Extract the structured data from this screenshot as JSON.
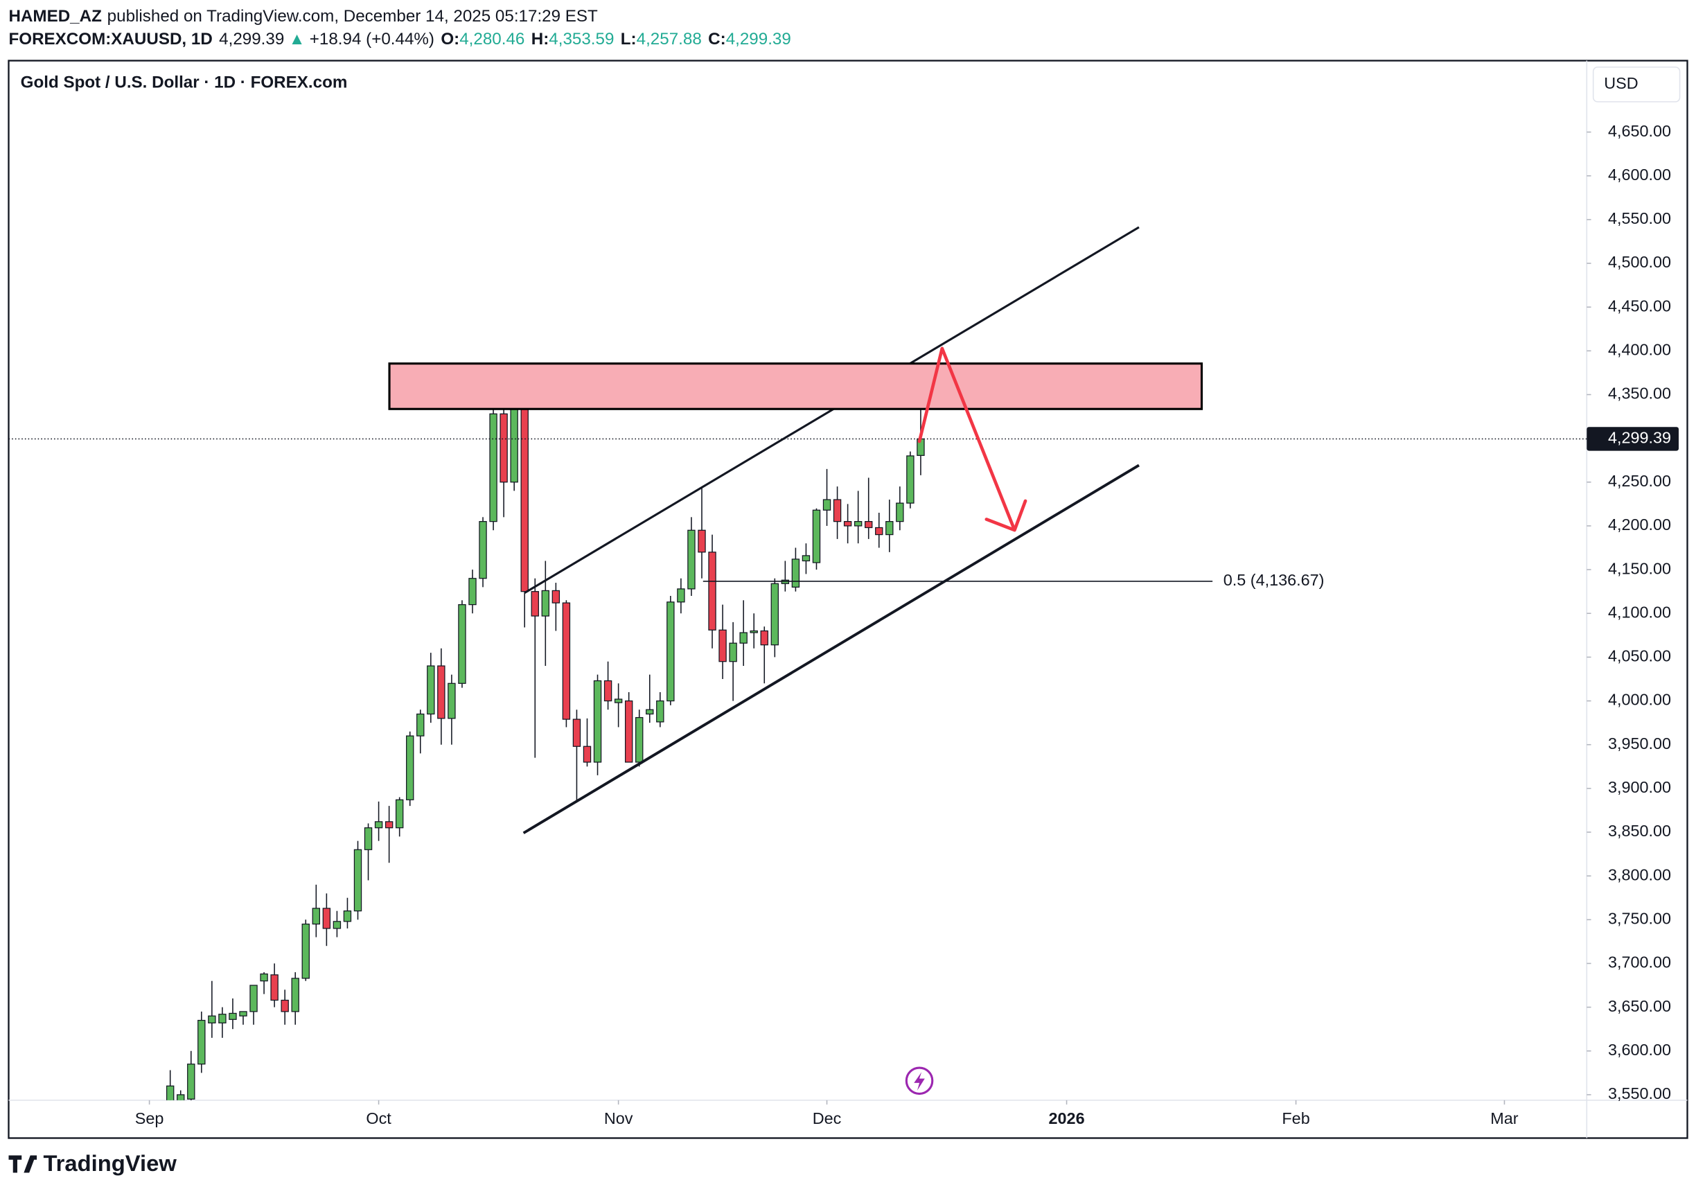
{
  "header": {
    "author": "HAMED_AZ",
    "published": "published on TradingView.com, December 14, 2025 05:17:29 EST",
    "symbol": "FOREXCOM:XAUUSD, 1D",
    "price": "4,299.39",
    "arrow": "▲",
    "change": "+18.94 (+0.44%)",
    "open_label": "O:",
    "open": "4,280.46",
    "high_label": "H:",
    "high": "4,353.59",
    "low_label": "L:",
    "low": "4,257.88",
    "close_label": "C:",
    "close": "4,299.39"
  },
  "chart_data": {
    "type": "candlestick",
    "title": "Gold Spot / U.S. Dollar · 1D · FOREX.com",
    "currency": "USD",
    "up_color": "#5cb85c",
    "down_color": "#e8404f",
    "x": [
      2,
      3,
      4,
      5,
      6,
      7,
      8,
      9,
      10,
      11,
      12,
      13,
      14,
      15,
      16,
      17,
      18,
      19,
      20,
      21,
      22,
      23,
      24,
      25,
      26,
      27,
      28,
      29,
      30,
      31,
      32,
      33,
      34,
      35,
      36,
      37,
      38,
      39,
      40,
      41,
      42,
      43,
      44,
      45,
      46,
      47,
      48,
      49,
      50,
      51,
      52,
      53,
      54,
      55,
      56,
      57,
      58,
      59,
      60,
      61,
      62,
      63,
      64,
      65,
      66,
      67,
      68,
      69,
      70,
      71,
      72,
      73,
      74
    ],
    "open": [
      3530,
      3540,
      3545,
      3585,
      3632,
      3632,
      3636,
      3640,
      3645,
      3680,
      3687,
      3658,
      3645,
      3683,
      3745,
      3763,
      3740,
      3748,
      3760,
      3830,
      3855,
      3862,
      3855,
      3887,
      3960,
      3985,
      4040,
      3980,
      4020,
      4110,
      4140,
      4205,
      4328,
      4250,
      4355,
      4125,
      4097,
      4126,
      4112,
      3979,
      3948,
      3930,
      4023,
      3998,
      4000,
      3930,
      3985,
      3976,
      4000,
      4113,
      4128,
      4195,
      4170,
      4081,
      4045,
      4066,
      4078,
      4080,
      4064,
      4134,
      4130,
      4160,
      4158,
      4218,
      4230,
      4205,
      4200,
      4205,
      4198,
      4190,
      4205,
      4226,
      4280.46
    ],
    "high": [
      3578,
      3555,
      3600,
      3645,
      3680,
      3650,
      3660,
      3645,
      3675,
      3690,
      3700,
      3670,
      3690,
      3750,
      3790,
      3780,
      3760,
      3775,
      3840,
      3860,
      3885,
      3880,
      3890,
      3965,
      3990,
      4055,
      4060,
      4030,
      4115,
      4150,
      4210,
      4340,
      4380,
      4385,
      4375,
      4140,
      4160,
      4135,
      4115,
      3990,
      3980,
      4030,
      4045,
      4020,
      4010,
      3990,
      4030,
      4010,
      4120,
      4140,
      4210,
      4245,
      4190,
      4110,
      4090,
      4115,
      4100,
      4085,
      4140,
      4160,
      4175,
      4180,
      4220,
      4265,
      4245,
      4225,
      4240,
      4255,
      4215,
      4230,
      4245,
      4285,
      4353.59
    ],
    "low": [
      3520,
      3530,
      3540,
      3575,
      3615,
      3615,
      3625,
      3630,
      3630,
      3665,
      3650,
      3630,
      3630,
      3680,
      3730,
      3720,
      3730,
      3740,
      3750,
      3795,
      3840,
      3815,
      3845,
      3880,
      3940,
      3975,
      3950,
      3950,
      4015,
      4100,
      4130,
      4195,
      4210,
      4240,
      4084,
      3935,
      4040,
      4080,
      3970,
      3885,
      3925,
      3915,
      3990,
      3970,
      3930,
      3925,
      3975,
      3970,
      3995,
      4100,
      4120,
      4140,
      4060,
      4025,
      4000,
      4040,
      4060,
      4020,
      4050,
      4125,
      4125,
      4145,
      4150,
      4200,
      4185,
      4180,
      4180,
      4185,
      4175,
      4170,
      4195,
      4220,
      4257.88
    ],
    "close": [
      3560,
      3550,
      3585,
      3635,
      3640,
      3642,
      3643,
      3645,
      3675,
      3688,
      3658,
      3645,
      3683,
      3745,
      3763,
      3740,
      3748,
      3760,
      3830,
      3855,
      3862,
      3855,
      3887,
      3960,
      3985,
      4040,
      3980,
      4020,
      4110,
      4140,
      4205,
      4328,
      4250,
      4355,
      4125,
      4097,
      4126,
      4112,
      3979,
      3948,
      3930,
      4023,
      4000,
      4002,
      3930,
      3981,
      3990,
      4000,
      4113,
      4128,
      4195,
      4170,
      4081,
      4045,
      4066,
      4078,
      4080,
      4064,
      4134,
      4138,
      4162,
      4166,
      4218,
      4230,
      4205,
      4200,
      4205,
      4198,
      4190,
      4205,
      4226,
      4280,
      4299.39
    ],
    "xlim": [
      -13.5,
      137.9
    ],
    "xticks": [
      {
        "value": 0,
        "label": "Sep"
      },
      {
        "value": 22,
        "label": "Oct"
      },
      {
        "value": 45,
        "label": "Nov"
      },
      {
        "value": 65,
        "label": "Dec"
      },
      {
        "value": 88,
        "label": "2026"
      },
      {
        "value": 110,
        "label": "Feb"
      },
      {
        "value": 130,
        "label": "Mar"
      }
    ],
    "ylim": [
      3543.7,
      4731.6
    ],
    "yticks": [
      {
        "value": 3550,
        "label": "3,550.00"
      },
      {
        "value": 3600,
        "label": "3,600.00"
      },
      {
        "value": 3650,
        "label": "3,650.00"
      },
      {
        "value": 3700,
        "label": "3,700.00"
      },
      {
        "value": 3750,
        "label": "3,750.00"
      },
      {
        "value": 3800,
        "label": "3,800.00"
      },
      {
        "value": 3850,
        "label": "3,850.00"
      },
      {
        "value": 3900,
        "label": "3,900.00"
      },
      {
        "value": 3950,
        "label": "3,950.00"
      },
      {
        "value": 4000,
        "label": "4,000.00"
      },
      {
        "value": 4050,
        "label": "4,050.00"
      },
      {
        "value": 4100,
        "label": "4,100.00"
      },
      {
        "value": 4150,
        "label": "4,150.00"
      },
      {
        "value": 4200,
        "label": "4,200.00"
      },
      {
        "value": 4250,
        "label": "4,250.00"
      },
      {
        "value": 4300,
        "label": "4,300.00"
      },
      {
        "value": 4350,
        "label": "4,350.00"
      },
      {
        "value": 4400,
        "label": "4,400.00"
      },
      {
        "value": 4450,
        "label": "4,450.00"
      },
      {
        "value": 4500,
        "label": "4,500.00"
      },
      {
        "value": 4550,
        "label": "4,550.00"
      },
      {
        "value": 4600,
        "label": "4,600.00"
      },
      {
        "value": 4650,
        "label": "4,650.00"
      }
    ],
    "last_price": {
      "value": 4299.39,
      "label": "4,299.39"
    },
    "fib_level": {
      "value": 4136.67,
      "label": "0.5 (4,136.67)"
    },
    "brand": "TradingView"
  }
}
